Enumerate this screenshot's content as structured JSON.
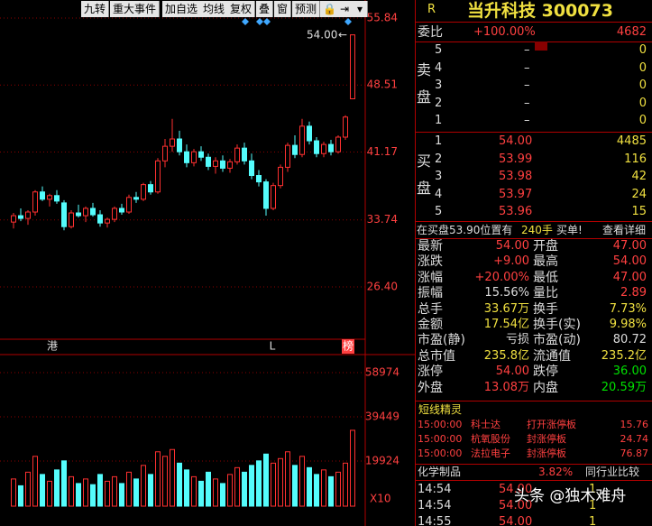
{
  "toolbar": [
    "九转",
    "重大事件",
    "加自选",
    "均线",
    "复权",
    "叠",
    "窗",
    "预测"
  ],
  "kline": {
    "candles": [
      [
        33.5,
        34.5,
        32.8,
        34.2
      ],
      [
        34.2,
        35.0,
        33.6,
        33.9
      ],
      [
        33.9,
        34.8,
        33.2,
        34.6
      ],
      [
        34.6,
        37.0,
        34.2,
        36.8
      ],
      [
        36.8,
        37.4,
        35.8,
        36.0
      ],
      [
        36.0,
        36.6,
        35.2,
        36.4
      ],
      [
        36.4,
        37.0,
        35.5,
        35.8
      ],
      [
        35.6,
        35.9,
        32.6,
        33.0
      ],
      [
        33.0,
        34.8,
        32.8,
        34.5
      ],
      [
        34.5,
        35.4,
        34.0,
        34.2
      ],
      [
        34.2,
        35.2,
        33.5,
        35.0
      ],
      [
        35.0,
        35.6,
        34.1,
        34.3
      ],
      [
        34.3,
        34.8,
        33.0,
        33.4
      ],
      [
        33.4,
        34.0,
        32.9,
        33.8
      ],
      [
        33.8,
        35.2,
        33.5,
        35.0
      ],
      [
        35.0,
        35.5,
        34.3,
        34.6
      ],
      [
        34.6,
        36.5,
        34.4,
        36.2
      ],
      [
        36.2,
        36.8,
        35.6,
        36.0
      ],
      [
        36.0,
        37.8,
        35.8,
        37.6
      ],
      [
        37.6,
        38.0,
        36.5,
        36.8
      ],
      [
        36.8,
        40.5,
        36.6,
        40.2
      ],
      [
        40.2,
        42.6,
        39.5,
        41.8
      ],
      [
        41.8,
        44.8,
        41.2,
        42.6
      ],
      [
        42.6,
        43.5,
        40.8,
        41.2
      ],
      [
        41.2,
        42.0,
        39.5,
        40.0
      ],
      [
        40.0,
        41.5,
        39.6,
        41.2
      ],
      [
        41.2,
        41.8,
        40.2,
        40.6
      ],
      [
        40.6,
        41.0,
        39.2,
        39.6
      ],
      [
        39.6,
        40.6,
        38.8,
        40.2
      ],
      [
        40.2,
        40.8,
        39.0,
        39.4
      ],
      [
        39.4,
        40.4,
        38.9,
        40.1
      ],
      [
        40.1,
        42.0,
        39.8,
        41.6
      ],
      [
        41.6,
        42.2,
        39.8,
        40.2
      ],
      [
        40.2,
        41.0,
        38.2,
        38.6
      ],
      [
        38.6,
        39.2,
        37.4,
        37.9
      ],
      [
        37.9,
        38.2,
        34.2,
        35.0
      ],
      [
        35.0,
        37.8,
        34.8,
        37.5
      ],
      [
        37.5,
        39.8,
        37.2,
        39.5
      ],
      [
        39.5,
        42.2,
        39.0,
        41.9
      ],
      [
        41.9,
        43.0,
        40.5,
        40.9
      ],
      [
        40.9,
        44.8,
        40.6,
        44.0
      ],
      [
        44.0,
        44.5,
        42.0,
        42.4
      ],
      [
        42.4,
        42.8,
        40.6,
        41.0
      ],
      [
        41.0,
        42.3,
        40.6,
        42.0
      ],
      [
        42.0,
        42.5,
        40.8,
        41.2
      ],
      [
        41.2,
        43.0,
        41.0,
        42.8
      ],
      [
        42.8,
        45.2,
        42.5,
        45.0
      ],
      [
        47.0,
        54.0,
        47.0,
        54.0
      ]
    ],
    "ylim": [
      19.98,
      57.52
    ],
    "price_ticks": [
      55.84,
      48.51,
      41.17,
      33.74,
      {
        "value": 26.4,
        "label": "26.40"
      }
    ],
    "annotation": "54.00",
    "markers": [
      "港",
      "L",
      "榜"
    ],
    "volume": {
      "values": [
        12000,
        9000,
        15000,
        22000,
        14000,
        11000,
        16000,
        20000,
        13000,
        10000,
        12000,
        9500,
        14000,
        11000,
        13000,
        10000,
        15000,
        12000,
        18000,
        14000,
        24000,
        22000,
        25000,
        19000,
        16000,
        13000,
        11000,
        15000,
        12000,
        10000,
        14000,
        17000,
        15000,
        18000,
        20000,
        23000,
        19000,
        21000,
        24000,
        18000,
        22000,
        17000,
        14000,
        16000,
        13000,
        15000,
        19000,
        33500
      ],
      "ylim": [
        0,
        65350
      ],
      "ticks": [
        58974,
        39449,
        19924
      ],
      "unit": "X10"
    }
  },
  "quote": {
    "badge": "R",
    "title": "当升科技 300073",
    "weibi": [
      "委比",
      "+100.00%",
      "4682"
    ],
    "sell_label": [
      "卖",
      "盘"
    ],
    "sell": [
      [
        "5",
        "–",
        "0"
      ],
      [
        "4",
        "–",
        "0"
      ],
      [
        "3",
        "–",
        "0"
      ],
      [
        "2",
        "–",
        "0"
      ],
      [
        "1",
        "–",
        "0"
      ]
    ],
    "buy_label": [
      "买",
      "盘"
    ],
    "buy": [
      [
        "1",
        "54.00",
        "4485"
      ],
      [
        "2",
        "53.99",
        "116"
      ],
      [
        "3",
        "53.98",
        "42"
      ],
      [
        "4",
        "53.97",
        "24"
      ],
      [
        "5",
        "53.96",
        "15"
      ]
    ],
    "notice": [
      "在买盘53.90位置有",
      "240手",
      "买单!",
      "查看详细"
    ],
    "stats": [
      [
        "最新",
        "54.00",
        "开盘",
        "47.00"
      ],
      [
        "涨跌",
        "+9.00",
        "最高",
        "54.00"
      ],
      [
        "涨幅",
        "+20.00%",
        "最低",
        "47.00"
      ],
      [
        "振幅",
        "15.56%",
        "量比",
        "2.89"
      ],
      [
        "总手",
        "33.67万",
        "换手",
        "7.73%"
      ],
      [
        "金额",
        "17.54亿",
        "换手(实)",
        "9.98%"
      ],
      [
        "市盈(静)",
        "亏损",
        "市盈(动)",
        "80.72"
      ],
      [
        "总市值",
        "235.8亿",
        "流通值",
        "235.2亿"
      ],
      [
        "涨停",
        "54.00",
        "跌停",
        "36.00"
      ],
      [
        "外盘",
        "13.08万",
        "内盘",
        "20.59万"
      ]
    ],
    "spirit_title": "短线精灵",
    "spirit": [
      [
        "15:00:00",
        "科士达",
        "打开涨停板",
        "15.76"
      ],
      [
        "15:00:00",
        "杭氧股份",
        "封涨停板",
        "24.74"
      ],
      [
        "15:00:00",
        "法拉电子",
        "封涨停板",
        "76.87"
      ]
    ],
    "industry": [
      "化学制品",
      "3.82%",
      "同行业比较"
    ],
    "trades": [
      [
        "14:54",
        "54.00",
        "1"
      ],
      [
        "14:54",
        "54.00",
        "1"
      ],
      [
        "14:55",
        "54.00",
        "1"
      ]
    ],
    "watermark": "头条 @独木难舟"
  }
}
